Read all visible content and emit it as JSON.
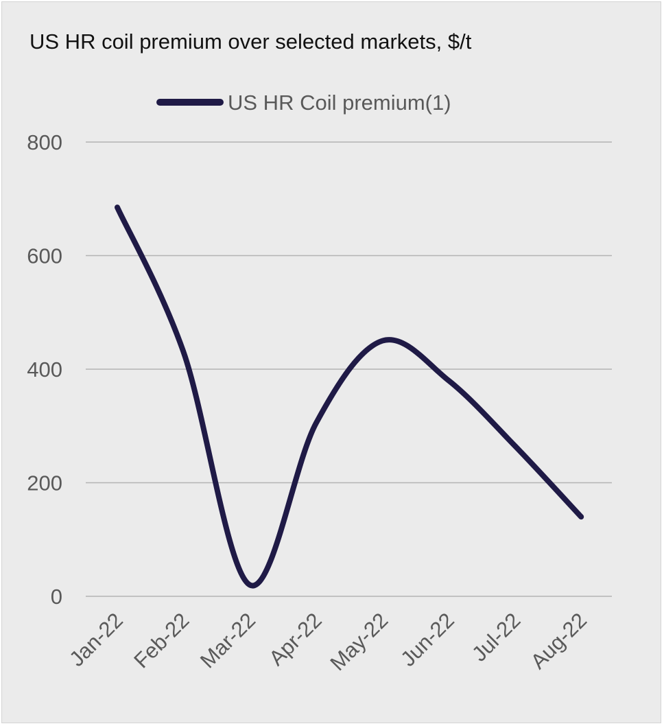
{
  "chart_data": {
    "type": "line",
    "title": "US HR coil premium over selected markets, $/t",
    "xlabel": "",
    "ylabel": "",
    "categories": [
      "Jan-22",
      "Feb-22",
      "Mar-22",
      "Apr-22",
      "May-22",
      "Jun-22",
      "Jul-22",
      "Aug-22"
    ],
    "series": [
      {
        "name": "US HR Coil premium(1)",
        "values": [
          685,
          430,
          20,
          305,
          450,
          380,
          265,
          140
        ],
        "color": "#1f1a46"
      }
    ],
    "ylim": [
      0,
      800
    ],
    "yticks": [
      0,
      200,
      400,
      600,
      800
    ],
    "grid": true,
    "legend": "top-center",
    "line_style": "smooth"
  }
}
